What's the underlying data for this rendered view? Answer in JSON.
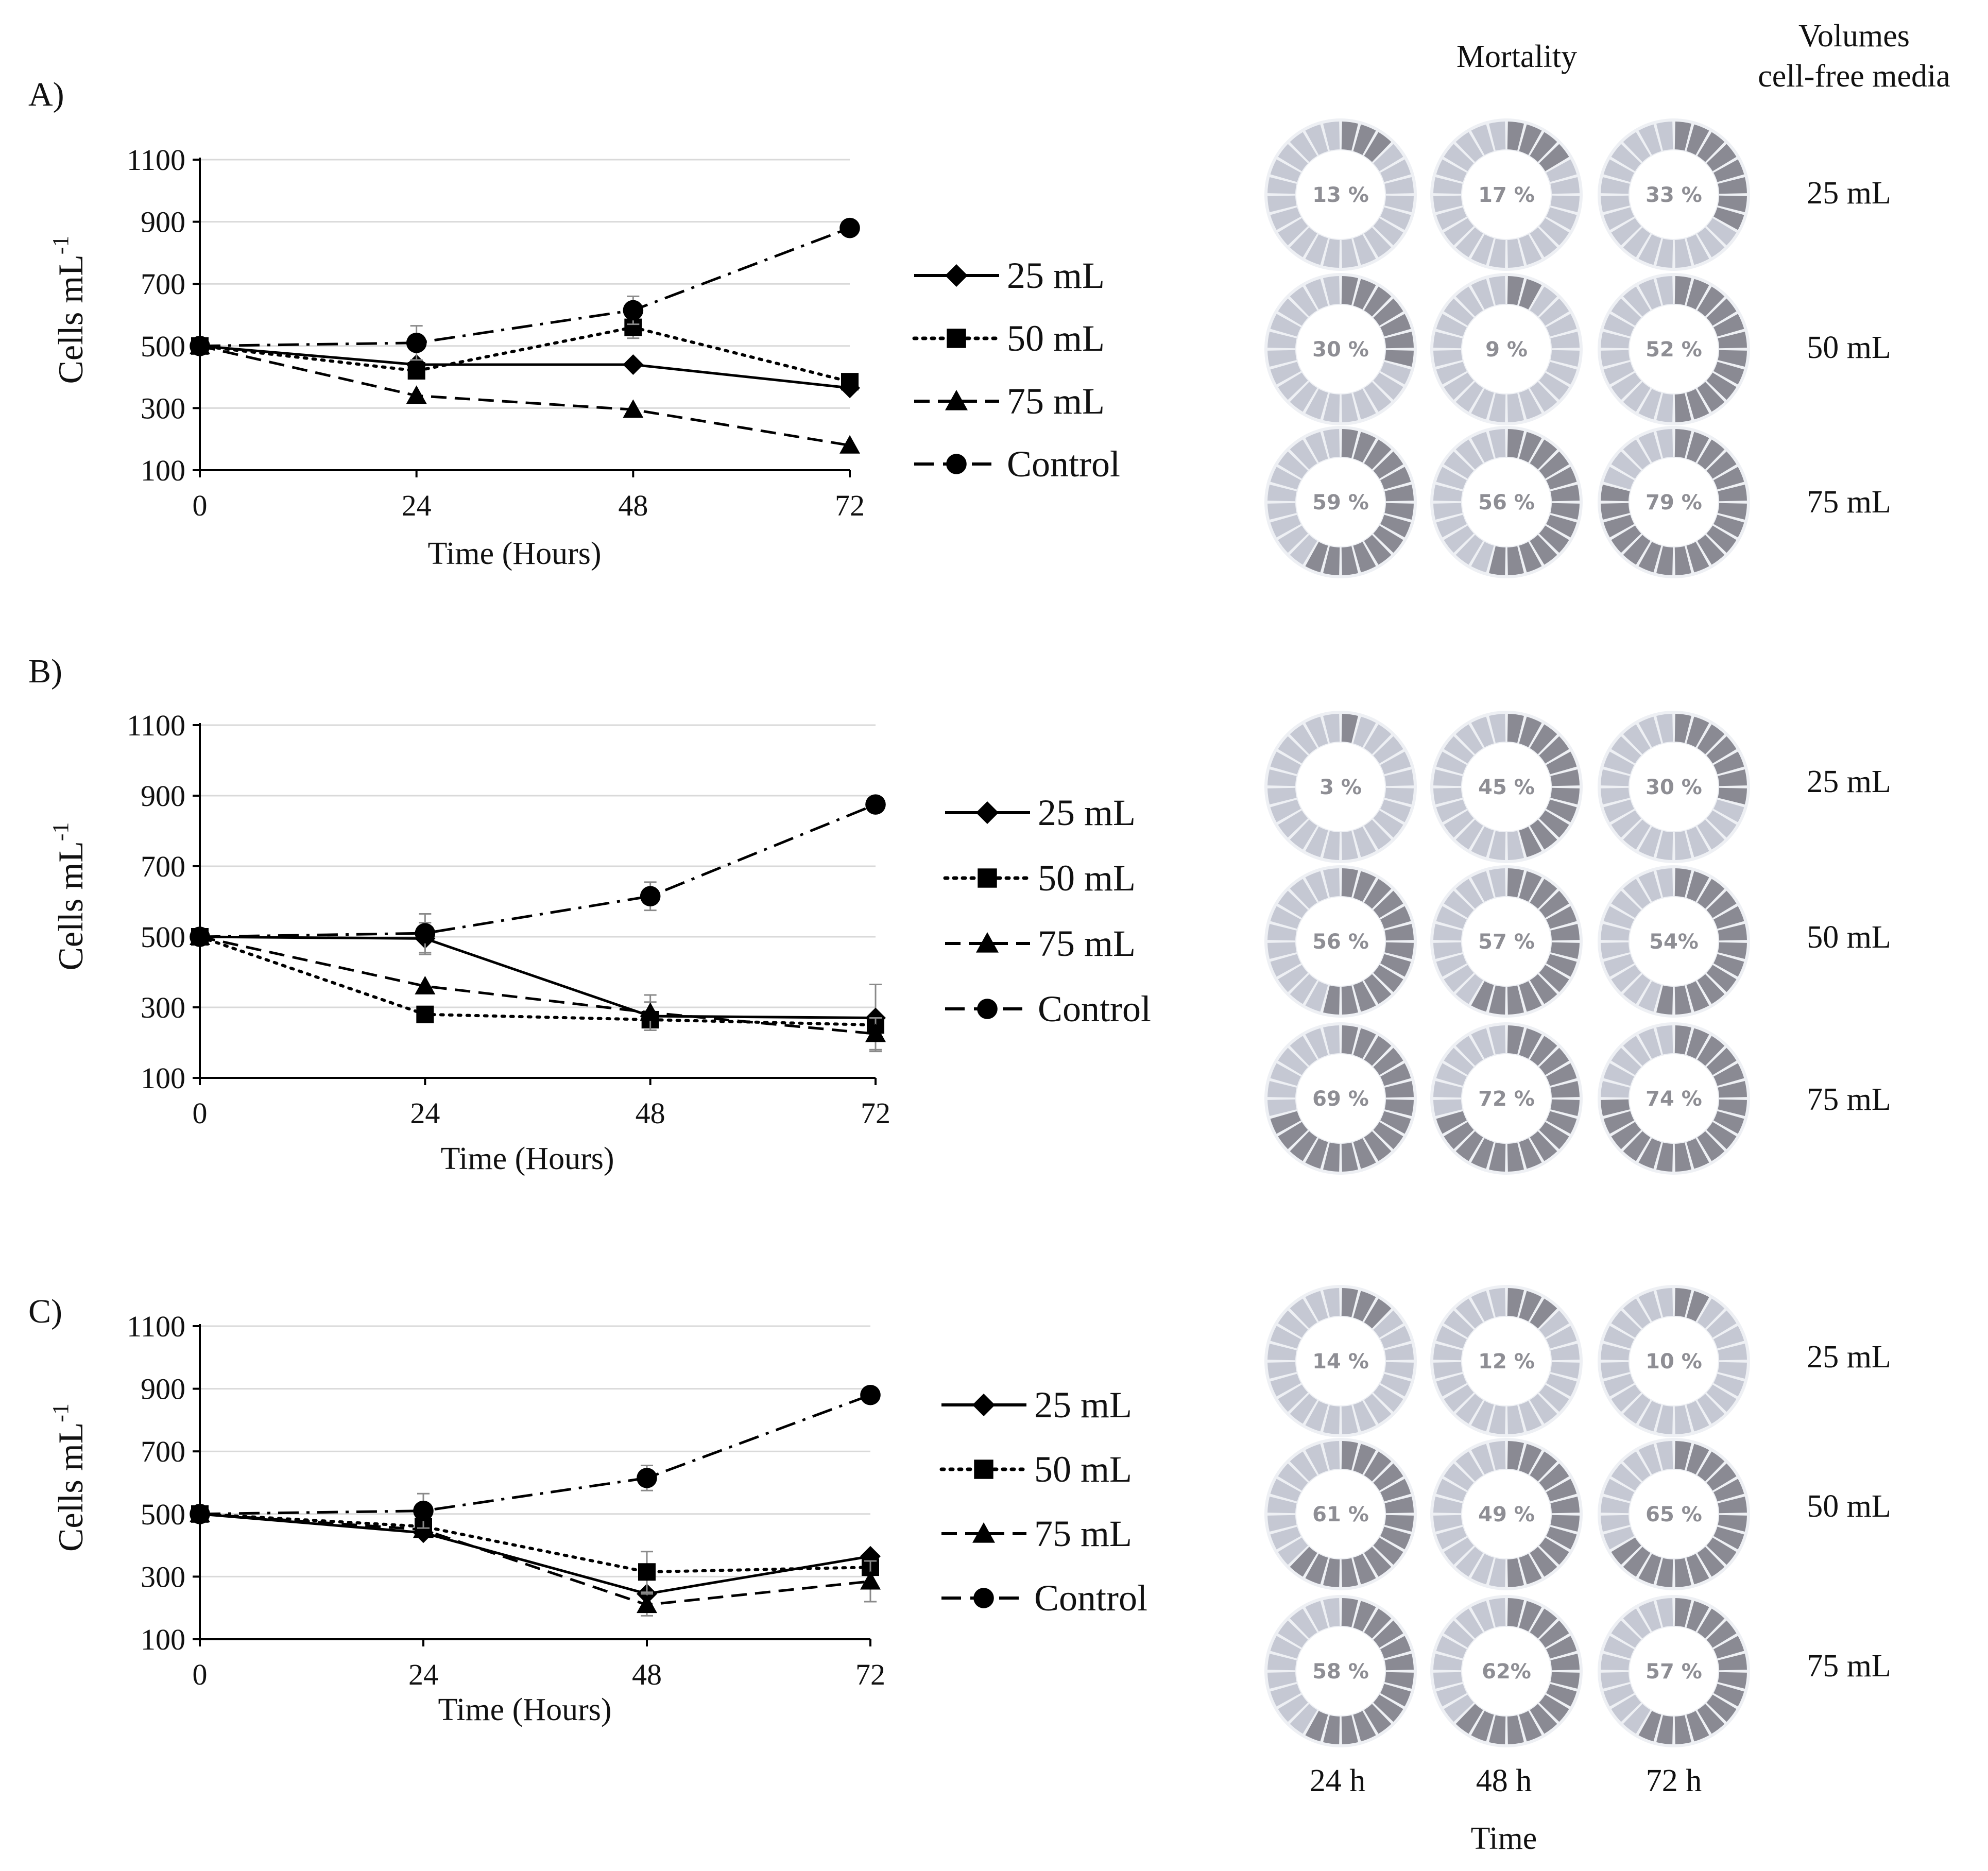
{
  "figure": {
    "mortality_header": "Mortality",
    "volumes_header_line1": "Volumes",
    "volumes_header_line2": "cell-free media",
    "time_columns": [
      "24 h",
      "48 h",
      "72 h"
    ],
    "time_label": "Time",
    "volume_rows": [
      "25 mL",
      "50 mL",
      "75 mL"
    ],
    "ring_colors": {
      "light": "#c5c8d3",
      "dark": "#8a8a93",
      "center": "#ffffff"
    }
  },
  "chart_data": [
    {
      "type": "line",
      "panel_label": "A)",
      "xlabel": "Time (Hours)",
      "ylabel": "Cells mL",
      "ylabel_superscript": "-1",
      "x": [
        0,
        24,
        48,
        72
      ],
      "ylim": [
        100,
        1100
      ],
      "yticks": [
        100,
        300,
        500,
        700,
        900,
        1100
      ],
      "grid": true,
      "legend_position": "right",
      "series": [
        {
          "name": "25 mL",
          "marker": "diamond",
          "dash": "solid",
          "values": [
            500,
            440,
            440,
            365
          ]
        },
        {
          "name": "50 mL",
          "marker": "square",
          "dash": "dotted",
          "values": [
            500,
            420,
            560,
            385
          ],
          "errors": [
            0,
            0,
            35,
            0
          ]
        },
        {
          "name": "75 mL",
          "marker": "triangle",
          "dash": "dashed",
          "values": [
            500,
            340,
            295,
            180
          ]
        },
        {
          "name": "Control",
          "marker": "circle",
          "dash": "dashdot",
          "values": [
            500,
            510,
            615,
            880
          ],
          "errors": [
            0,
            55,
            45,
            0
          ]
        }
      ],
      "mortality": {
        "labels": [
          [
            "13 %",
            "17 %",
            "33 %"
          ],
          [
            "30 %",
            "9 %",
            "52 %"
          ],
          [
            "59 %",
            "56 %",
            "79 %"
          ]
        ],
        "values": [
          [
            13,
            17,
            33
          ],
          [
            30,
            9,
            52
          ],
          [
            59,
            56,
            79
          ]
        ]
      }
    },
    {
      "type": "line",
      "panel_label": "B)",
      "xlabel": "Time (Hours)",
      "ylabel": "Cells mL",
      "ylabel_superscript": "-1",
      "x": [
        0,
        24,
        48,
        72
      ],
      "ylim": [
        100,
        1100
      ],
      "yticks": [
        100,
        300,
        500,
        700,
        900,
        1100
      ],
      "grid": true,
      "legend_position": "right",
      "series": [
        {
          "name": "25 mL",
          "marker": "diamond",
          "dash": "solid",
          "values": [
            500,
            495,
            275,
            270
          ],
          "errors": [
            0,
            45,
            40,
            95
          ]
        },
        {
          "name": "50 mL",
          "marker": "square",
          "dash": "dotted",
          "values": [
            500,
            280,
            265,
            250
          ]
        },
        {
          "name": "75 mL",
          "marker": "triangle",
          "dash": "dashed",
          "values": [
            500,
            360,
            285,
            225
          ],
          "errors": [
            0,
            0,
            50,
            45
          ]
        },
        {
          "name": "Control",
          "marker": "circle",
          "dash": "dashdot",
          "values": [
            500,
            510,
            615,
            875
          ],
          "errors": [
            0,
            55,
            40,
            0
          ]
        }
      ],
      "mortality": {
        "labels": [
          [
            "3 %",
            "45 %",
            "30 %"
          ],
          [
            "56 %",
            "57 %",
            "54%"
          ],
          [
            "69 %",
            "72 %",
            "74 %"
          ]
        ],
        "values": [
          [
            3,
            45,
            30
          ],
          [
            56,
            57,
            54
          ],
          [
            69,
            72,
            74
          ]
        ]
      }
    },
    {
      "type": "line",
      "panel_label": "C)",
      "xlabel": "Time (Hours)",
      "ylabel": "Cells mL",
      "ylabel_superscript": "-1",
      "x": [
        0,
        24,
        48,
        72
      ],
      "ylim": [
        100,
        1100
      ],
      "yticks": [
        100,
        300,
        500,
        700,
        900,
        1100
      ],
      "grid": true,
      "legend_position": "right",
      "series": [
        {
          "name": "25 mL",
          "marker": "diamond",
          "dash": "solid",
          "values": [
            500,
            440,
            245,
            365
          ]
        },
        {
          "name": "50 mL",
          "marker": "square",
          "dash": "dotted",
          "values": [
            500,
            460,
            315,
            330
          ],
          "errors": [
            0,
            0,
            65,
            0
          ]
        },
        {
          "name": "75 mL",
          "marker": "triangle",
          "dash": "dashed",
          "values": [
            500,
            450,
            210,
            285
          ],
          "errors": [
            0,
            0,
            35,
            65
          ]
        },
        {
          "name": "Control",
          "marker": "circle",
          "dash": "dashdot",
          "values": [
            500,
            510,
            615,
            880
          ],
          "errors": [
            0,
            55,
            40,
            0
          ]
        }
      ],
      "mortality": {
        "labels": [
          [
            "14 %",
            "12 %",
            "10 %"
          ],
          [
            "61 %",
            "49 %",
            "65 %"
          ],
          [
            "58 %",
            "62%",
            "57 %"
          ]
        ],
        "values": [
          [
            14,
            12,
            10
          ],
          [
            61,
            49,
            65
          ],
          [
            58,
            62,
            57
          ]
        ]
      }
    }
  ]
}
